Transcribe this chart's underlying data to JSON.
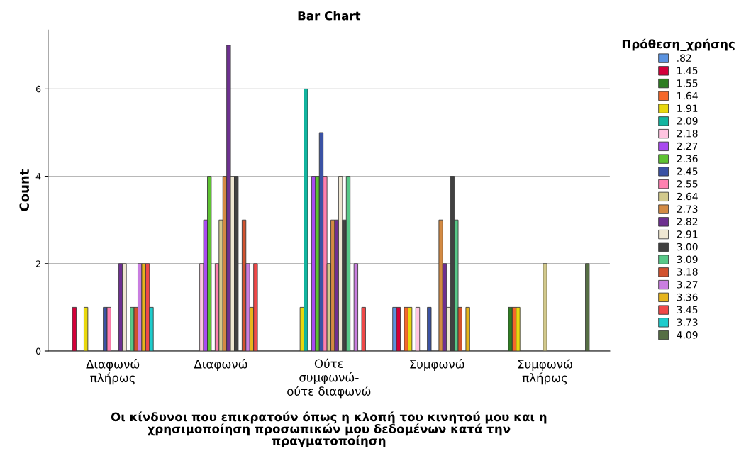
{
  "chart_data": {
    "type": "bar",
    "title": "Bar Chart",
    "xlabel": "Οι κίνδυνοι που επικρατούν όπως η κλοπή του κινητού μου και η\nχρησιμοποίηση προσωπικών μου δεδομένων κατά την\nπραγματοποίηση",
    "ylabel": "Count",
    "legend_title": "Πρόθεση_χρήσης",
    "legend": "right",
    "grid": "y",
    "categories": [
      "Διαφωνώ\nπλήρως",
      "Διαφωνώ",
      "Ούτε\nσυμφωνώ-\nούτε διαφωνώ",
      "Συμφωνώ",
      "Συμφωνώ\nπλήρως"
    ],
    "ylim": [
      0,
      7.35
    ],
    "yticks": [
      0,
      2,
      4,
      6
    ],
    "series": [
      {
        "name": ".82",
        "color": "#5b93e0",
        "values": [
          null,
          null,
          null,
          1,
          null
        ]
      },
      {
        "name": "1.45",
        "color": "#d4003a",
        "values": [
          1,
          null,
          null,
          1,
          null
        ]
      },
      {
        "name": "1.55",
        "color": "#2e7d22",
        "values": [
          null,
          null,
          null,
          null,
          1
        ]
      },
      {
        "name": "1.64",
        "color": "#f5682a",
        "values": [
          null,
          null,
          null,
          1,
          1
        ]
      },
      {
        "name": "1.91",
        "color": "#e8d80e",
        "values": [
          1,
          null,
          1,
          1,
          1
        ]
      },
      {
        "name": "2.09",
        "color": "#12b5a0",
        "values": [
          null,
          null,
          6,
          null,
          null
        ]
      },
      {
        "name": "2.18",
        "color": "#ffc4e0",
        "values": [
          null,
          2,
          null,
          1,
          null
        ]
      },
      {
        "name": "2.27",
        "color": "#a94af0",
        "values": [
          null,
          3,
          4,
          null,
          null
        ]
      },
      {
        "name": "2.36",
        "color": "#5ec232",
        "values": [
          null,
          4,
          4,
          null,
          null
        ]
      },
      {
        "name": "2.45",
        "color": "#3b52a4",
        "values": [
          1,
          null,
          5,
          1,
          null
        ]
      },
      {
        "name": "2.55",
        "color": "#ff80b0",
        "values": [
          1,
          2,
          4,
          null,
          null
        ]
      },
      {
        "name": "2.64",
        "color": "#d2c98c",
        "values": [
          null,
          3,
          2,
          null,
          2
        ]
      },
      {
        "name": "2.73",
        "color": "#d38a43",
        "values": [
          null,
          4,
          3,
          3,
          null
        ]
      },
      {
        "name": "2.82",
        "color": "#6e3090",
        "values": [
          2,
          7,
          3,
          2,
          null
        ]
      },
      {
        "name": "2.91",
        "color": "#efe7d2",
        "values": [
          2,
          4,
          4,
          1,
          null
        ]
      },
      {
        "name": "3.00",
        "color": "#414141",
        "values": [
          null,
          4,
          3,
          4,
          null
        ]
      },
      {
        "name": "3.09",
        "color": "#58c888",
        "values": [
          1,
          null,
          4,
          3,
          null
        ]
      },
      {
        "name": "3.18",
        "color": "#d2522e",
        "values": [
          1,
          3,
          null,
          1,
          null
        ]
      },
      {
        "name": "3.27",
        "color": "#c97ee0",
        "values": [
          2,
          2,
          2,
          null,
          null
        ]
      },
      {
        "name": "3.36",
        "color": "#e6b41c",
        "values": [
          2,
          1,
          null,
          1,
          null
        ]
      },
      {
        "name": "3.45",
        "color": "#ef4848",
        "values": [
          2,
          2,
          1,
          null,
          null
        ]
      },
      {
        "name": "3.73",
        "color": "#1ecccc",
        "values": [
          1,
          null,
          null,
          null,
          null
        ]
      },
      {
        "name": "4.09",
        "color": "#566e44",
        "values": [
          null,
          null,
          null,
          null,
          2
        ]
      }
    ]
  }
}
